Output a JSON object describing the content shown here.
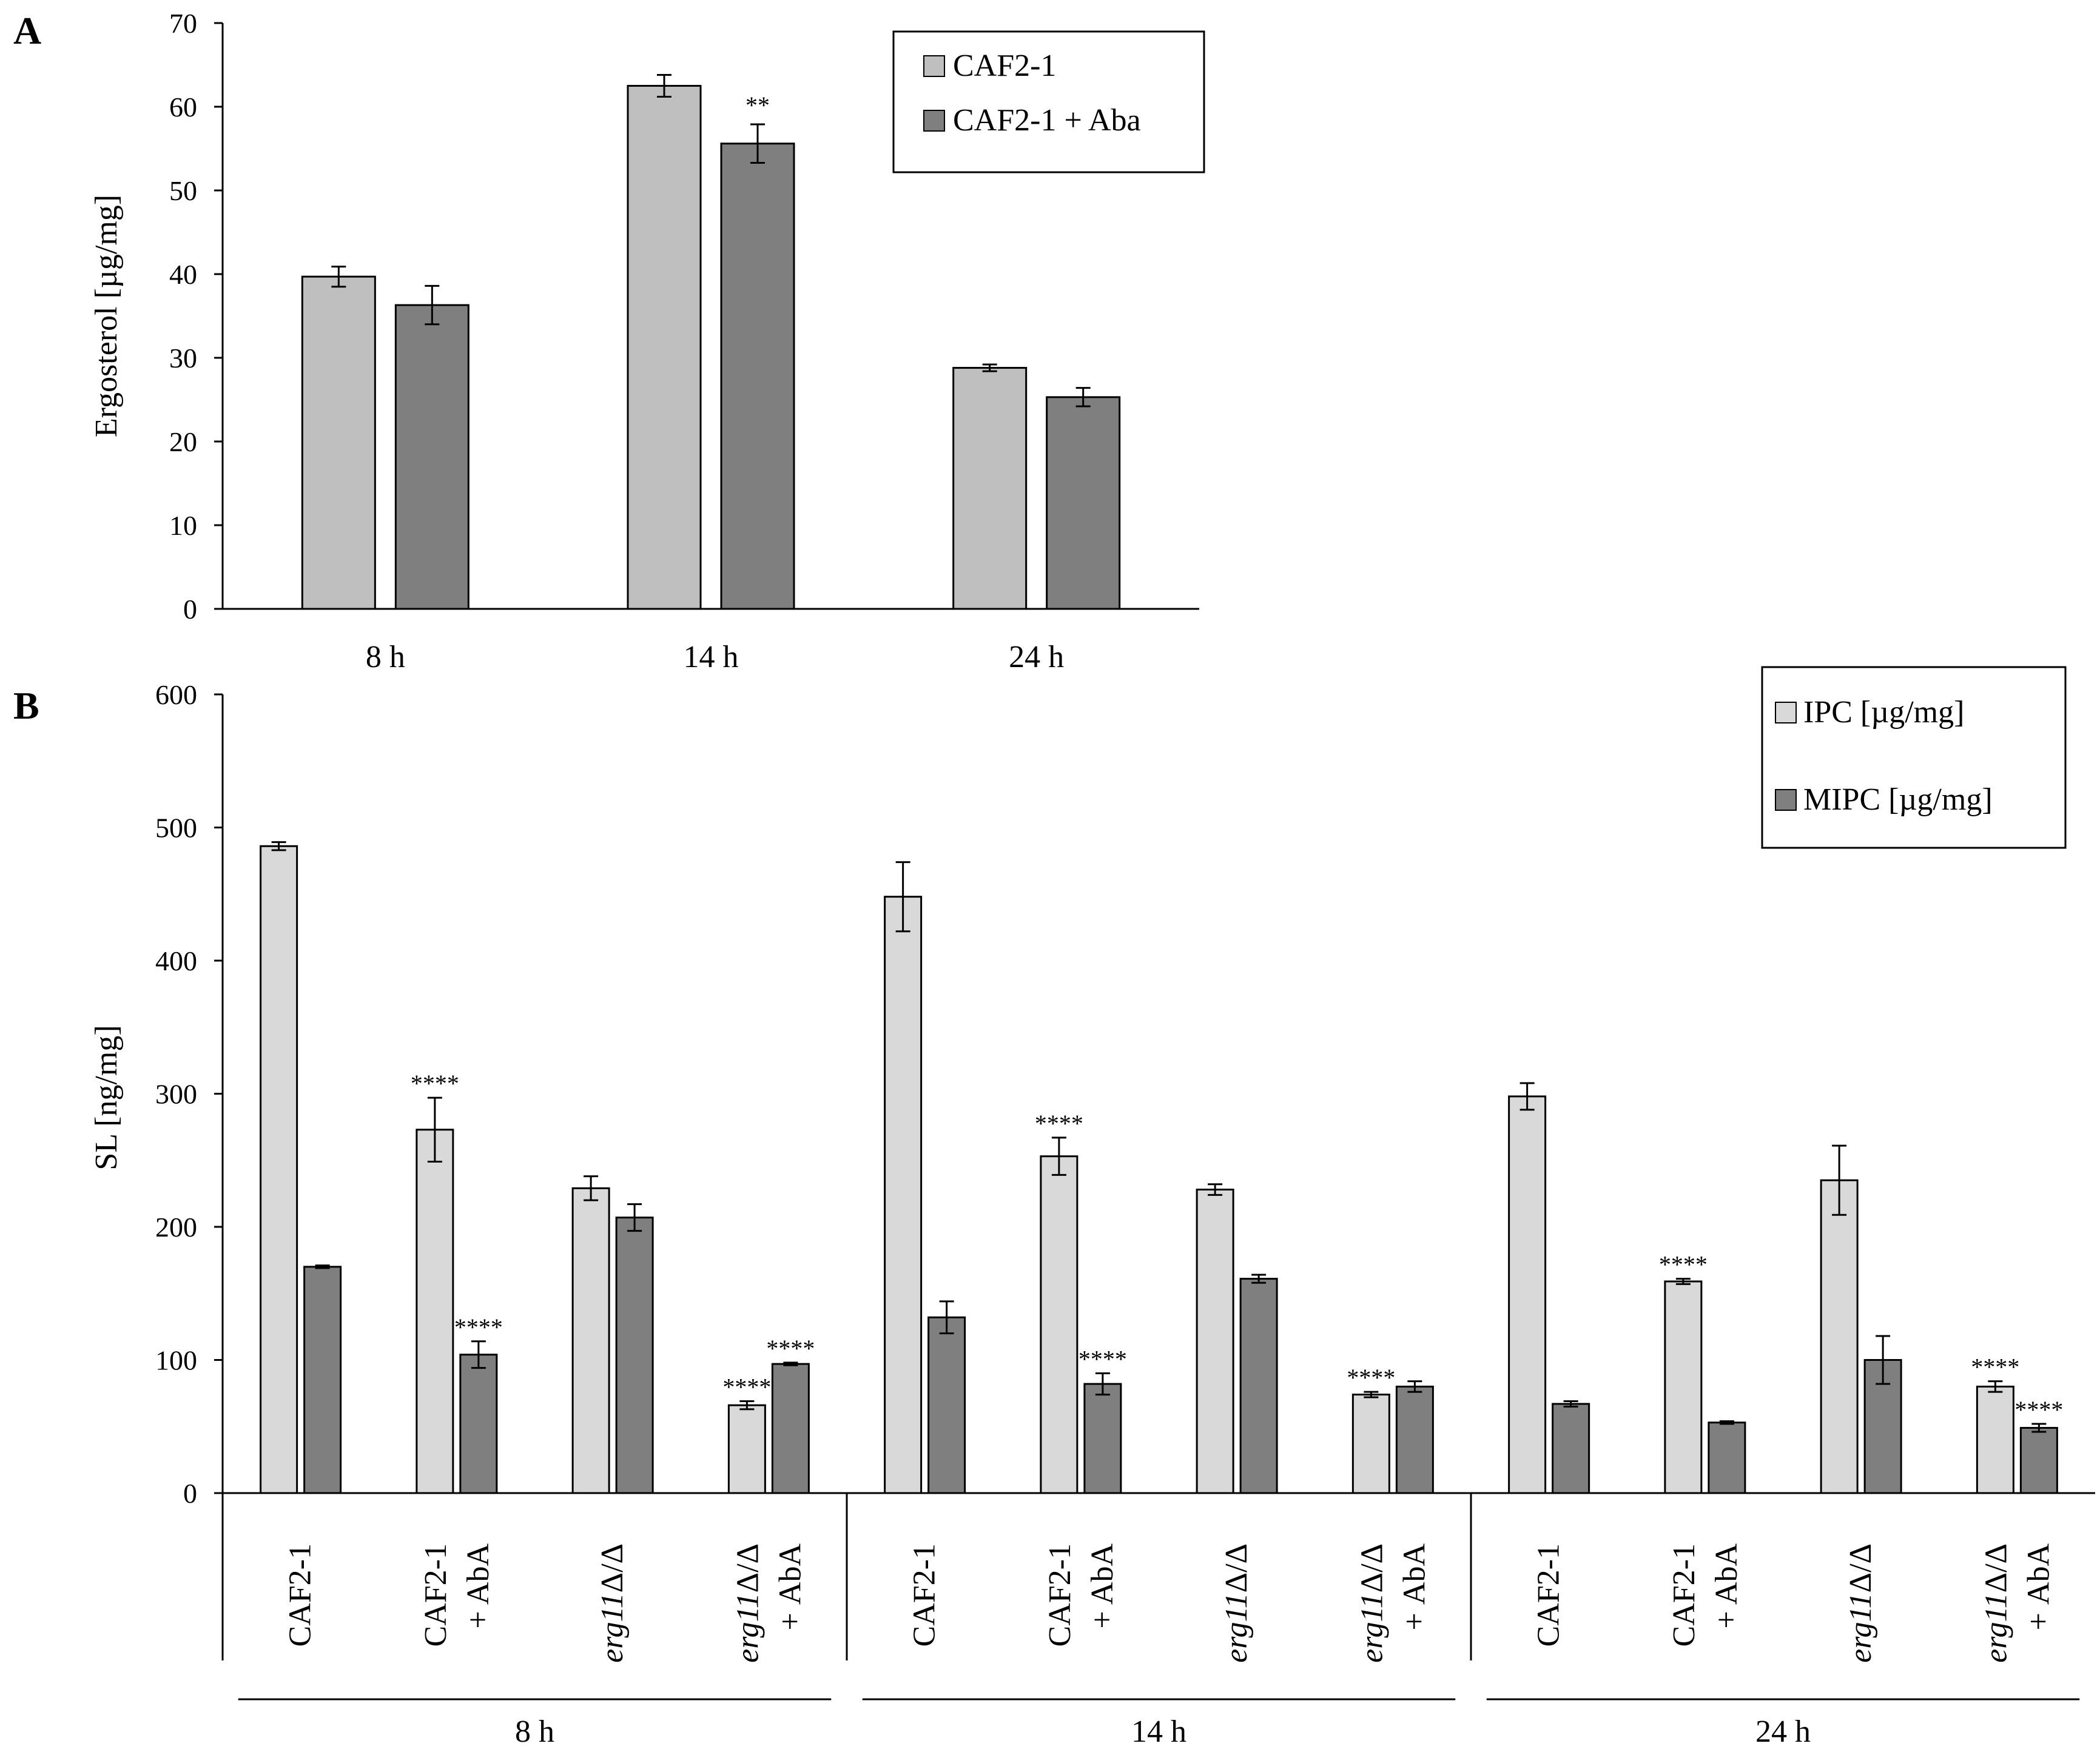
{
  "chart_data": [
    {
      "panel": "A",
      "type": "bar",
      "categories": [
        "8 h",
        "14 h",
        "24 h"
      ],
      "series": [
        {
          "name": "CAF2-1",
          "color": "#bfbfbf",
          "values": [
            39.7,
            62.5,
            28.8
          ],
          "errors": [
            1.2,
            1.3,
            0.4
          ],
          "sig": [
            "",
            "",
            ""
          ]
        },
        {
          "name": "CAF2-1 + Aba",
          "color": "#7f7f7f",
          "values": [
            36.3,
            55.6,
            25.3
          ],
          "errors": [
            2.3,
            2.3,
            1.1
          ],
          "sig": [
            "",
            "**",
            ""
          ]
        }
      ],
      "ylabel": "Ergosterol [µg/mg]",
      "xlabel": "",
      "ylim": [
        0,
        70
      ],
      "yticks": [
        0,
        10,
        20,
        30,
        40,
        50,
        60,
        70
      ],
      "legend_position": "top-right"
    },
    {
      "panel": "B",
      "type": "bar",
      "categories": [
        {
          "lines": [
            "CAF2-1"
          ],
          "italic": false
        },
        {
          "lines": [
            "CAF2-1",
            "+ AbA"
          ],
          "italic": false
        },
        {
          "lines": [
            "erg11",
            "Δ/Δ"
          ],
          "italic": true
        },
        {
          "lines": [
            "erg11",
            "Δ/Δ",
            "+ AbA"
          ],
          "italic": true
        },
        {
          "lines": [
            "CAF2-1"
          ],
          "italic": false
        },
        {
          "lines": [
            "CAF2-1",
            "+ AbA"
          ],
          "italic": false
        },
        {
          "lines": [
            "erg11",
            "Δ/Δ"
          ],
          "italic": true
        },
        {
          "lines": [
            "erg11",
            "Δ/Δ",
            "+ AbA"
          ],
          "italic": true
        },
        {
          "lines": [
            "CAF2-1"
          ],
          "italic": false
        },
        {
          "lines": [
            "CAF2-1",
            "+ AbA"
          ],
          "italic": false
        },
        {
          "lines": [
            "erg11",
            "Δ/Δ"
          ],
          "italic": true
        },
        {
          "lines": [
            "erg11",
            "Δ/Δ",
            "+ AbA"
          ],
          "italic": true
        }
      ],
      "groups": [
        "8 h",
        "14 h",
        "24 h"
      ],
      "series": [
        {
          "name": "IPC [µg/mg]",
          "color": "#d9d9d9",
          "values": [
            486,
            273,
            229,
            66,
            448,
            253,
            228,
            74,
            298,
            159,
            235,
            80
          ],
          "errors": [
            3,
            24,
            9,
            3,
            26,
            14,
            4,
            2,
            10,
            2,
            26,
            4
          ],
          "sig": [
            "",
            "****",
            "",
            "****",
            "",
            "****",
            "",
            "****",
            "",
            "****",
            "",
            "****"
          ]
        },
        {
          "name": "MIPC [µg/mg]",
          "color": "#7f7f7f",
          "values": [
            170,
            104,
            207,
            97,
            132,
            82,
            161,
            80,
            67,
            53,
            100,
            49
          ],
          "errors": [
            1,
            10,
            10,
            1,
            12,
            8,
            3,
            4,
            2,
            1,
            18,
            3
          ],
          "sig": [
            "",
            "****",
            "",
            "****",
            "",
            "****",
            "",
            "",
            "",
            "",
            "",
            "****"
          ]
        }
      ],
      "ylabel": "SL [ng/mg]",
      "xlabel": "",
      "ylim": [
        0,
        600
      ],
      "yticks": [
        0,
        100,
        200,
        300,
        400,
        500,
        600
      ],
      "legend_position": "top-right"
    }
  ],
  "labels": {
    "panelA": "A",
    "panelB": "B"
  }
}
